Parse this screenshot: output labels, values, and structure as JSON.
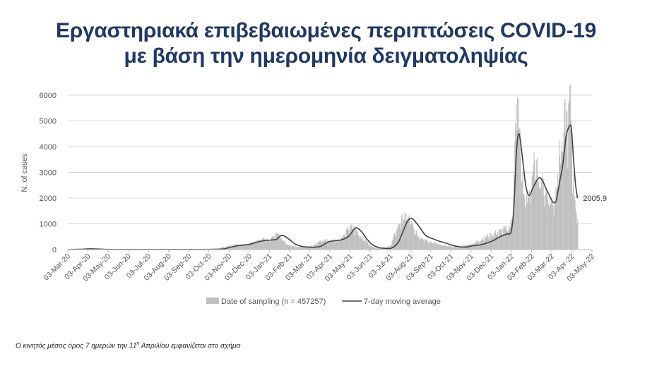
{
  "title_line1": "Εργαστηριακά επιβεβαιωμένες περιπτώσεις COVID-19",
  "title_line2": "με βάση την ημερομηνία δειγματοληψίας",
  "footnote_pre": "Ο κινητός μέσος όρος 7 ημερών την 11",
  "footnote_sup": "η",
  "footnote_post": " Απριλίου εμφανίζεται στο σχήμα",
  "chart_data": {
    "type": "bar",
    "ylabel": "N. of cases",
    "ylim": [
      0,
      6000
    ],
    "yticks": [
      0,
      1000,
      2000,
      3000,
      4000,
      5000,
      6000
    ],
    "xlim": [
      "2020-03-03",
      "2022-05-03"
    ],
    "xtick_labels": [
      "03-Mar-20",
      "03-Apr-20",
      "03-May-20",
      "03-Jun-20",
      "03-Jul-20",
      "03-Aug-20",
      "03-Sep-20",
      "03-Oct-20",
      "03-Nov-20",
      "03-Dec-20",
      "03-Jan-21",
      "03-Feb-21",
      "03-Mar-21",
      "03-Apr-21",
      "03-May-21",
      "03-Jun-21",
      "03-Jul-21",
      "03-Aug-21",
      "03-Sep-21",
      "03-Oct-21",
      "03-Nov-21",
      "03-Dec-21",
      "03-Jan-22",
      "03-Feb-22",
      "03-Mar-22",
      "03-Apr-22",
      "03-May-22"
    ],
    "grid": "horizontal",
    "legend_position": "bottom",
    "annotation": {
      "text": "2005.9",
      "date": "2022-04-11",
      "value": 2005.9
    },
    "series": [
      {
        "name": "Date of sampling (n = 457257)",
        "type": "bar",
        "color": "#bfbfbf",
        "x": [
          "2020-03-03",
          "2020-03-25",
          "2020-04-05",
          "2020-04-20",
          "2020-05-15",
          "2020-07-01",
          "2020-08-10",
          "2020-09-20",
          "2020-10-15",
          "2020-10-25",
          "2020-11-05",
          "2020-11-15",
          "2020-11-25",
          "2020-12-05",
          "2020-12-15",
          "2020-12-25",
          "2021-01-03",
          "2021-01-12",
          "2021-01-20",
          "2021-01-28",
          "2021-02-05",
          "2021-02-15",
          "2021-02-25",
          "2021-03-05",
          "2021-03-15",
          "2021-03-25",
          "2021-04-05",
          "2021-04-15",
          "2021-04-25",
          "2021-05-02",
          "2021-05-10",
          "2021-05-20",
          "2021-05-28",
          "2021-06-05",
          "2021-06-15",
          "2021-06-25",
          "2021-07-03",
          "2021-07-10",
          "2021-07-17",
          "2021-07-24",
          "2021-07-31",
          "2021-08-07",
          "2021-08-14",
          "2021-08-21",
          "2021-08-28",
          "2021-09-05",
          "2021-09-15",
          "2021-09-25",
          "2021-10-05",
          "2021-10-15",
          "2021-10-25",
          "2021-11-03",
          "2021-11-13",
          "2021-11-23",
          "2021-12-03",
          "2021-12-13",
          "2021-12-23",
          "2021-12-30",
          "2022-01-03",
          "2022-01-06",
          "2022-01-09",
          "2022-01-12",
          "2022-01-15",
          "2022-01-20",
          "2022-01-25",
          "2022-01-30",
          "2022-02-03",
          "2022-02-08",
          "2022-02-13",
          "2022-02-18",
          "2022-02-23",
          "2022-02-28",
          "2022-03-03",
          "2022-03-08",
          "2022-03-13",
          "2022-03-18",
          "2022-03-23",
          "2022-03-28",
          "2022-03-31",
          "2022-04-03",
          "2022-04-06",
          "2022-04-09",
          "2022-04-11"
        ],
        "values": [
          0,
          20,
          40,
          30,
          5,
          5,
          5,
          10,
          40,
          110,
          170,
          200,
          180,
          270,
          370,
          400,
          380,
          700,
          420,
          200,
          130,
          110,
          90,
          140,
          280,
          370,
          350,
          380,
          580,
          900,
          800,
          480,
          300,
          110,
          50,
          50,
          180,
          650,
          1100,
          1300,
          1200,
          750,
          520,
          450,
          350,
          270,
          200,
          140,
          100,
          120,
          170,
          240,
          350,
          500,
          600,
          700,
          800,
          900,
          1400,
          4000,
          5700,
          5200,
          3700,
          2000,
          1900,
          2400,
          3300,
          3100,
          2900,
          2500,
          2200,
          2000,
          1800,
          2000,
          3600,
          3900,
          5100,
          5000,
          6350,
          3200,
          2300,
          1500,
          1200
        ]
      },
      {
        "name": "7-day moving average",
        "type": "line",
        "color": "#404040",
        "x": [
          "2020-03-03",
          "2020-03-20",
          "2020-04-05",
          "2020-04-20",
          "2020-05-05",
          "2020-07-01",
          "2020-09-01",
          "2020-10-10",
          "2020-10-25",
          "2020-11-05",
          "2020-11-15",
          "2020-11-25",
          "2020-12-05",
          "2020-12-15",
          "2020-12-25",
          "2021-01-03",
          "2021-01-12",
          "2021-01-20",
          "2021-01-30",
          "2021-02-10",
          "2021-02-20",
          "2021-03-01",
          "2021-03-10",
          "2021-03-20",
          "2021-03-31",
          "2021-04-10",
          "2021-04-20",
          "2021-04-30",
          "2021-05-05",
          "2021-05-12",
          "2021-05-20",
          "2021-05-28",
          "2021-06-05",
          "2021-06-15",
          "2021-06-25",
          "2021-07-05",
          "2021-07-15",
          "2021-07-25",
          "2021-07-30",
          "2021-08-05",
          "2021-08-15",
          "2021-08-25",
          "2021-09-05",
          "2021-09-15",
          "2021-09-25",
          "2021-10-05",
          "2021-10-15",
          "2021-10-25",
          "2021-11-05",
          "2021-11-15",
          "2021-11-25",
          "2021-12-05",
          "2021-12-15",
          "2021-12-25",
          "2022-01-01",
          "2022-01-05",
          "2022-01-09",
          "2022-01-13",
          "2022-01-18",
          "2022-01-23",
          "2022-01-28",
          "2022-02-03",
          "2022-02-08",
          "2022-02-13",
          "2022-02-18",
          "2022-02-23",
          "2022-02-28",
          "2022-03-05",
          "2022-03-10",
          "2022-03-15",
          "2022-03-20",
          "2022-03-25",
          "2022-03-30",
          "2022-04-02",
          "2022-04-05",
          "2022-04-08",
          "2022-04-11"
        ],
        "values": [
          0,
          10,
          30,
          20,
          5,
          5,
          5,
          10,
          30,
          100,
          150,
          180,
          220,
          300,
          350,
          370,
          400,
          560,
          420,
          200,
          120,
          100,
          90,
          130,
          300,
          340,
          380,
          500,
          650,
          850,
          700,
          420,
          200,
          80,
          50,
          60,
          300,
          900,
          1150,
          1200,
          900,
          550,
          420,
          320,
          250,
          160,
          110,
          100,
          150,
          180,
          250,
          350,
          500,
          600,
          700,
          1600,
          3800,
          4500,
          3600,
          2500,
          2100,
          2400,
          2650,
          2800,
          2650,
          2350,
          2100,
          1850,
          1900,
          2600,
          3300,
          4400,
          4800,
          4700,
          3600,
          2600,
          2005.9
        ]
      }
    ]
  }
}
